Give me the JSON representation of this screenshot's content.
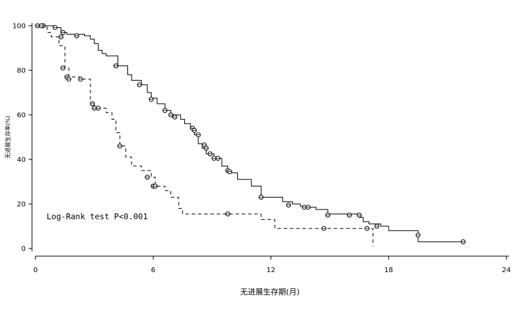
{
  "chart_data": {
    "type": "line",
    "subtype": "kaplan-meier step curves",
    "xlabel": "无进展生存期(月)",
    "ylabel": "无进展生存率(%)",
    "xlim": [
      0,
      24
    ],
    "ylim": [
      0,
      100
    ],
    "xticks": [
      0,
      6,
      12,
      18,
      24
    ],
    "yticks": [
      0,
      20,
      40,
      60,
      80,
      100
    ],
    "grid": false,
    "annotation": "Log-Rank test P<0.001",
    "series": [
      {
        "line_style": "solid",
        "steps": [
          [
            0,
            100
          ],
          [
            1.0,
            99.2
          ],
          [
            1.3,
            97
          ],
          [
            1.6,
            96.2
          ],
          [
            2.5,
            95.5
          ],
          [
            2.8,
            94
          ],
          [
            3.0,
            92
          ],
          [
            3.2,
            89
          ],
          [
            3.4,
            87.5
          ],
          [
            3.6,
            86.5
          ],
          [
            4.2,
            82
          ],
          [
            4.7,
            78
          ],
          [
            4.9,
            75.5
          ],
          [
            5.4,
            73.5
          ],
          [
            5.7,
            70
          ],
          [
            5.9,
            67.5
          ],
          [
            6.2,
            65
          ],
          [
            6.6,
            62
          ],
          [
            6.9,
            60
          ],
          [
            7.4,
            58
          ],
          [
            7.6,
            56
          ],
          [
            7.9,
            53.5
          ],
          [
            8.1,
            51
          ],
          [
            8.3,
            47
          ],
          [
            8.5,
            45
          ],
          [
            8.7,
            42.5
          ],
          [
            9.1,
            40.5
          ],
          [
            9.5,
            37
          ],
          [
            9.8,
            34
          ],
          [
            10.3,
            31
          ],
          [
            11.0,
            28
          ],
          [
            11.5,
            23
          ],
          [
            12.6,
            21
          ],
          [
            13.1,
            20
          ],
          [
            13.5,
            19
          ],
          [
            13.9,
            18.5
          ],
          [
            14.3,
            17.5
          ],
          [
            14.9,
            15.5
          ],
          [
            16.5,
            14
          ],
          [
            16.7,
            12
          ],
          [
            17.0,
            11
          ],
          [
            17.6,
            10
          ],
          [
            18.0,
            8
          ],
          [
            19.5,
            3
          ],
          [
            21.8,
            3
          ]
        ],
        "censored": [
          [
            0.1,
            100
          ],
          [
            0.4,
            100
          ],
          [
            1.0,
            99.2
          ],
          [
            1.4,
            97
          ],
          [
            2.1,
            95.5
          ],
          [
            4.1,
            82
          ],
          [
            5.3,
            73.5
          ],
          [
            5.9,
            67
          ],
          [
            6.6,
            62
          ],
          [
            6.9,
            60
          ],
          [
            7.1,
            59
          ],
          [
            8.0,
            54
          ],
          [
            8.1,
            53
          ],
          [
            8.3,
            51
          ],
          [
            8.6,
            46.5
          ],
          [
            8.7,
            45
          ],
          [
            8.9,
            42.5
          ],
          [
            9.1,
            40.5
          ],
          [
            9.3,
            40.5
          ],
          [
            9.8,
            35
          ],
          [
            9.9,
            34.5
          ],
          [
            11.5,
            23
          ],
          [
            12.9,
            19.5
          ],
          [
            13.7,
            18.5
          ],
          [
            13.9,
            18.5
          ],
          [
            14.9,
            15
          ],
          [
            16.0,
            15
          ],
          [
            16.5,
            15
          ],
          [
            17.4,
            10
          ],
          [
            19.5,
            6
          ],
          [
            21.8,
            3
          ]
        ]
      },
      {
        "line_style": "dashed",
        "steps": [
          [
            0,
            100
          ],
          [
            0.6,
            97
          ],
          [
            0.8,
            95
          ],
          [
            1.2,
            91
          ],
          [
            1.5,
            81
          ],
          [
            1.7,
            77
          ],
          [
            2.3,
            76
          ],
          [
            2.8,
            65
          ],
          [
            3.0,
            63
          ],
          [
            3.6,
            61
          ],
          [
            3.9,
            58
          ],
          [
            4.1,
            52
          ],
          [
            4.3,
            46
          ],
          [
            4.6,
            41
          ],
          [
            4.9,
            37
          ],
          [
            5.4,
            35
          ],
          [
            5.9,
            32
          ],
          [
            6.1,
            28
          ],
          [
            6.6,
            26
          ],
          [
            6.9,
            23
          ],
          [
            7.3,
            18
          ],
          [
            7.5,
            15.5
          ],
          [
            11.5,
            13
          ],
          [
            12.2,
            9
          ],
          [
            17.2,
            1
          ]
        ],
        "censored": [
          [
            0.3,
            100
          ],
          [
            1.3,
            95
          ],
          [
            1.4,
            81
          ],
          [
            1.6,
            77
          ],
          [
            1.7,
            76
          ],
          [
            2.3,
            76
          ],
          [
            2.9,
            65
          ],
          [
            3.0,
            63
          ],
          [
            3.2,
            63
          ],
          [
            4.3,
            46
          ],
          [
            5.7,
            32
          ],
          [
            6.0,
            28
          ],
          [
            6.1,
            28
          ],
          [
            9.8,
            15.5
          ],
          [
            14.7,
            9
          ],
          [
            16.9,
            9
          ]
        ]
      }
    ]
  }
}
